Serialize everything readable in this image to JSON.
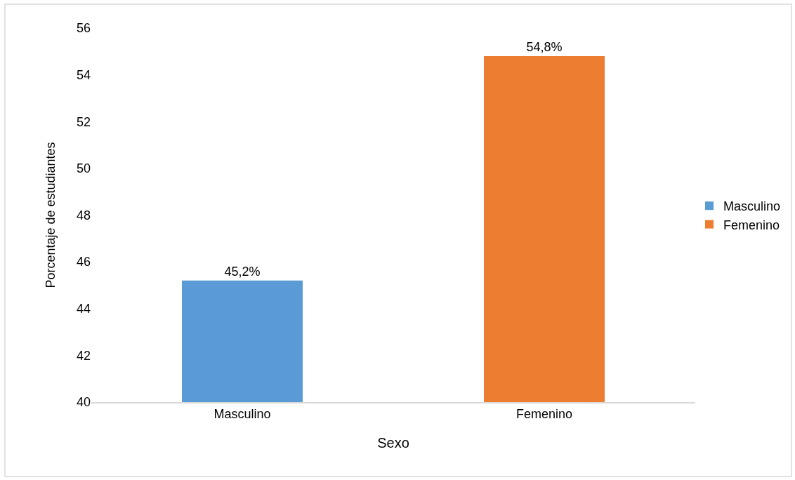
{
  "chart_data": {
    "type": "bar",
    "xlabel": "Sexo",
    "ylabel": "Porcentaje de estudiantes",
    "categories": [
      "Masculino",
      "Femenino"
    ],
    "series": [
      {
        "name": "Masculino",
        "color": "#5b9bd5",
        "values": [
          45.2,
          null
        ],
        "value_labels": [
          "45,2%",
          null
        ]
      },
      {
        "name": "Femenino",
        "color": "#ed7d31",
        "values": [
          null,
          54.8
        ],
        "value_labels": [
          null,
          "54,8%"
        ]
      }
    ],
    "ylim": [
      40,
      56
    ],
    "yticks": [
      40,
      42,
      44,
      46,
      48,
      50,
      52,
      54,
      56
    ],
    "grid": false,
    "legend": "right"
  }
}
